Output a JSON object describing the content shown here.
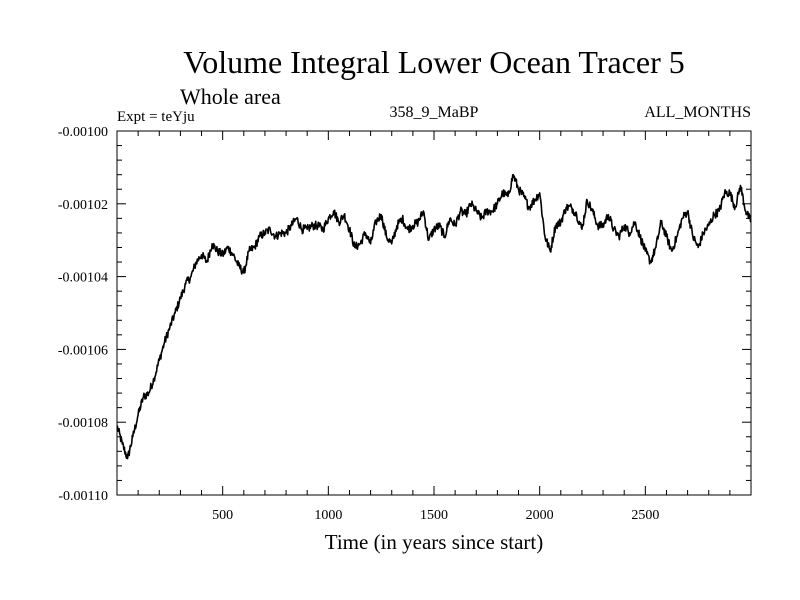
{
  "chart_data": {
    "type": "line",
    "title": "Volume Integral Lower Ocean Tracer 5",
    "subtitle": "Whole area",
    "experiment_label": "Expt = teYju",
    "run_label": "358_9_MaBP",
    "period_label": "ALL_MONTHS",
    "xlabel": "Time (in years since start)",
    "ylabel": "",
    "xlim": [
      0,
      3000
    ],
    "ylim": [
      -0.0011,
      -0.001
    ],
    "x_ticks": [
      500,
      1000,
      1500,
      2000,
      2500
    ],
    "y_ticks": [
      "-0.00100",
      "-0.00102",
      "-0.00104",
      "-0.00106",
      "-0.00108",
      "-0.00110"
    ],
    "series": [
      {
        "name": "Lower Ocean Tracer 5",
        "x": [
          0,
          25,
          50,
          75,
          100,
          125,
          150,
          175,
          200,
          225,
          250,
          275,
          300,
          325,
          350,
          375,
          400,
          425,
          450,
          475,
          500,
          525,
          550,
          575,
          600,
          625,
          650,
          675,
          700,
          725,
          750,
          775,
          800,
          825,
          850,
          875,
          900,
          925,
          950,
          975,
          1000,
          1025,
          1050,
          1075,
          1100,
          1125,
          1150,
          1175,
          1200,
          1225,
          1250,
          1275,
          1300,
          1325,
          1350,
          1375,
          1400,
          1425,
          1450,
          1475,
          1500,
          1525,
          1550,
          1575,
          1600,
          1625,
          1650,
          1675,
          1700,
          1725,
          1750,
          1775,
          1800,
          1825,
          1850,
          1875,
          1900,
          1925,
          1950,
          1975,
          2000,
          2025,
          2050,
          2075,
          2100,
          2125,
          2150,
          2175,
          2200,
          2225,
          2250,
          2275,
          2300,
          2325,
          2350,
          2375,
          2400,
          2425,
          2450,
          2475,
          2500,
          2525,
          2550,
          2575,
          2600,
          2625,
          2650,
          2675,
          2700,
          2725,
          2750,
          2775,
          2800,
          2825,
          2850,
          2875,
          2900,
          2925,
          2950,
          2975,
          3000
        ],
        "values": [
          -0.001081,
          -0.001086,
          -0.00109,
          -0.001084,
          -0.001078,
          -0.001073,
          -0.001072,
          -0.001068,
          -0.001063,
          -0.001058,
          -0.001054,
          -0.00105,
          -0.001046,
          -0.001042,
          -0.00104,
          -0.001036,
          -0.001034,
          -0.001036,
          -0.001031,
          -0.001033,
          -0.001034,
          -0.001032,
          -0.001034,
          -0.001037,
          -0.001039,
          -0.001033,
          -0.001032,
          -0.001029,
          -0.001028,
          -0.001027,
          -0.001029,
          -0.001028,
          -0.001028,
          -0.001026,
          -0.001024,
          -0.001027,
          -0.001027,
          -0.001026,
          -0.001026,
          -0.001027,
          -0.001024,
          -0.001022,
          -0.001025,
          -0.001023,
          -0.001027,
          -0.001032,
          -0.001031,
          -0.001028,
          -0.001031,
          -0.001025,
          -0.001023,
          -0.001029,
          -0.001031,
          -0.001026,
          -0.001024,
          -0.001027,
          -0.001026,
          -0.001025,
          -0.001022,
          -0.00103,
          -0.001027,
          -0.001026,
          -0.001029,
          -0.001024,
          -0.001026,
          -0.001022,
          -0.001023,
          -0.00102,
          -0.001022,
          -0.001024,
          -0.001022,
          -0.001022,
          -0.00102,
          -0.001017,
          -0.001018,
          -0.001012,
          -0.001016,
          -0.001018,
          -0.001021,
          -0.001019,
          -0.001017,
          -0.001029,
          -0.001033,
          -0.001026,
          -0.001025,
          -0.001021,
          -0.001021,
          -0.001023,
          -0.001027,
          -0.001019,
          -0.001022,
          -0.001026,
          -0.001026,
          -0.001023,
          -0.001027,
          -0.001029,
          -0.001026,
          -0.001028,
          -0.001025,
          -0.001029,
          -0.001033,
          -0.001036,
          -0.001032,
          -0.001025,
          -0.001029,
          -0.001033,
          -0.001029,
          -0.001024,
          -0.001022,
          -0.001029,
          -0.001032,
          -0.001028,
          -0.001026,
          -0.001023,
          -0.001022,
          -0.001017,
          -0.001017,
          -0.001021,
          -0.001015,
          -0.001022,
          -0.001025
        ]
      }
    ]
  }
}
